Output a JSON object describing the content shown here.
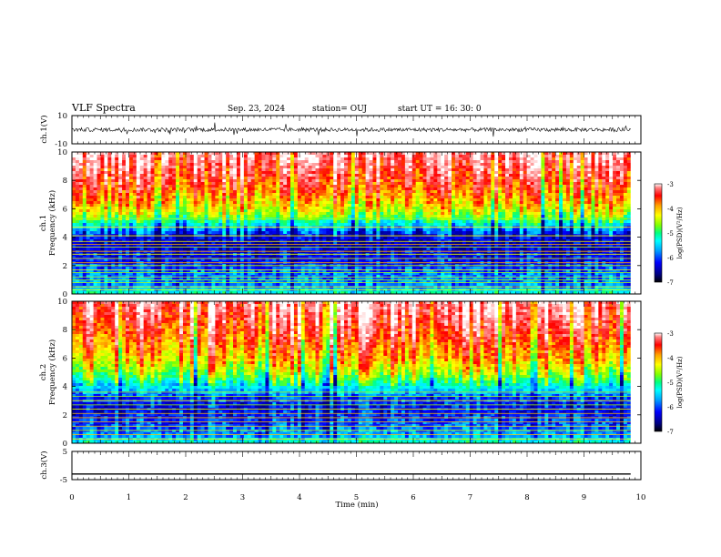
{
  "header": {
    "title": "VLF Spectra",
    "date": "Sep. 23, 2024",
    "station": "station= OUJ",
    "start": "start  UT  =   16: 30: 0"
  },
  "colors": {
    "axis": "#000000",
    "waveform": "#000000",
    "colormap": [
      "#000080",
      "#0000ff",
      "#00a0ff",
      "#00ffff",
      "#00ff80",
      "#80ff00",
      "#ffff00",
      "#ffa000",
      "#ff0000",
      "#ff8080",
      "#ffffff"
    ]
  },
  "chart_data": [
    {
      "type": "line",
      "panel": "ch1-waveform",
      "ylabel": "ch.1(V)",
      "ylim": [
        -10,
        10
      ],
      "ytick_labels": [
        "10",
        "-10"
      ],
      "x_range_min": [
        0,
        9.82
      ],
      "baseline_v": 0,
      "typical_amplitude_v": 2
    },
    {
      "type": "heatmap",
      "panel": "ch1-spectrogram",
      "ylabel_top": "ch.1",
      "ylabel": "Frequency (kHz)",
      "ylim": [
        0,
        10
      ],
      "ytick_labels": [
        "0",
        "2",
        "4",
        "6",
        "8",
        "10"
      ],
      "x_range_min": [
        0,
        9.82
      ],
      "colorbar": {
        "label": "log(PSD)(V²/Hz)",
        "range": [
          -7,
          -3
        ],
        "tick_labels": [
          "-3",
          "-4",
          "-5",
          "-6",
          "-7"
        ]
      },
      "profile_khz_vs_logpsd": [
        [
          0,
          -5.5
        ],
        [
          0.5,
          -6.2
        ],
        [
          1.5,
          -6.3
        ],
        [
          2.5,
          -6.6
        ],
        [
          3.5,
          -6.8
        ],
        [
          4.2,
          -6.6
        ],
        [
          5.0,
          -5.6
        ],
        [
          5.6,
          -4.8
        ],
        [
          6.5,
          -4.3
        ],
        [
          8.0,
          -3.7
        ],
        [
          10,
          -3.2
        ]
      ],
      "narrowband_lines_khz": [
        0.3,
        0.5,
        0.8,
        1.0,
        1.2,
        1.5,
        1.7,
        2.0,
        2.2,
        2.5,
        2.8,
        3.0,
        3.3,
        3.5,
        3.7,
        4.1,
        4.7,
        5.3
      ]
    },
    {
      "type": "heatmap",
      "panel": "ch2-spectrogram",
      "ylabel_top": "ch.2",
      "ylabel": "Frequency (kHz)",
      "ylim": [
        0,
        10
      ],
      "ytick_labels": [
        "0",
        "2",
        "4",
        "6",
        "8",
        "10"
      ],
      "x_range_min": [
        0,
        9.82
      ],
      "colorbar": {
        "label": "log(PSD)(V²/Hz)",
        "range": [
          -7,
          -3
        ],
        "tick_labels": [
          "-3",
          "-4",
          "-5",
          "-6",
          "-7"
        ]
      },
      "profile_khz_vs_logpsd": [
        [
          0,
          -5.5
        ],
        [
          0.5,
          -6.1
        ],
        [
          1.5,
          -6.4
        ],
        [
          2.5,
          -6.6
        ],
        [
          3.2,
          -6.4
        ],
        [
          4.0,
          -5.7
        ],
        [
          4.8,
          -4.9
        ],
        [
          5.8,
          -4.3
        ],
        [
          7.0,
          -3.9
        ],
        [
          8.5,
          -3.5
        ],
        [
          10,
          -3.2
        ]
      ],
      "narrowband_lines_khz": [
        0.3,
        0.6,
        0.9,
        1.2,
        1.5,
        1.8,
        2.1,
        2.4,
        2.7,
        3.0,
        3.3,
        3.6
      ]
    },
    {
      "type": "line",
      "panel": "ch3-waveform",
      "ylabel": "ch.3(V)",
      "ylim": [
        -5,
        5
      ],
      "ytick_labels": [
        "5",
        "-5"
      ],
      "x_range_min": [
        0,
        9.82
      ],
      "baseline_v": -3
    }
  ],
  "xaxis": {
    "label": "Time (min)",
    "range": [
      0,
      10
    ],
    "tick_labels": [
      "0",
      "1",
      "2",
      "3",
      "4",
      "5",
      "6",
      "7",
      "8",
      "9",
      "10"
    ]
  }
}
